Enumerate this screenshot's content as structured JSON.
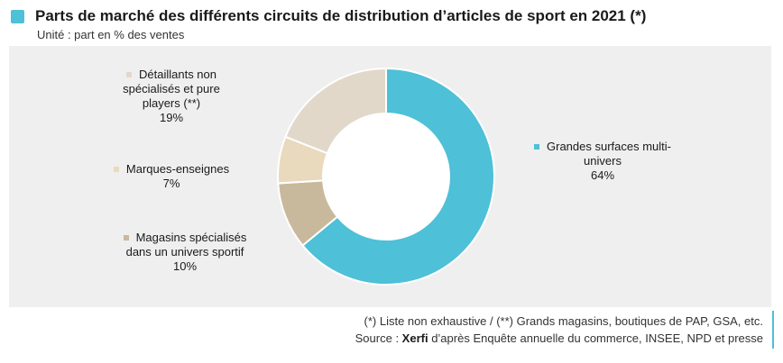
{
  "header": {
    "title": "Parts de marché des différents circuits de distribution d’articles de sport en 2021 (*)",
    "subtitle": "Unité : part en % des ventes",
    "accent_color": "#4ec0d8"
  },
  "chart_data": {
    "type": "pie",
    "variant": "donut",
    "title": "Parts de marché des différents circuits de distribution d’articles de sport en 2021 (*)",
    "unit": "Unité : part en % des ventes",
    "slices": [
      {
        "label": "Grandes surfaces multi-univers",
        "value": 64,
        "value_label": "64%",
        "color": "#4ec0d8"
      },
      {
        "label": "Magasins spécialisés dans un univers sportif",
        "value": 10,
        "value_label": "10%",
        "color": "#c9b99c"
      },
      {
        "label": "Marques-enseignes",
        "value": 7,
        "value_label": "7%",
        "color": "#e9d9bd"
      },
      {
        "label": "Détaillants non spécialisés et pure players (**)",
        "value": 19,
        "value_label": "19%",
        "color": "#e2d8c9"
      }
    ]
  },
  "labels": {
    "gsm": {
      "lines": [
        "Grandes surfaces multi-",
        "univers"
      ],
      "pct": "64%"
    },
    "mag": {
      "lines": [
        "Magasins spécialisés",
        "dans un univers sportif"
      ],
      "pct": "10%"
    },
    "marques": {
      "lines": [
        "Marques-enseignes"
      ],
      "pct": "7%"
    },
    "detail": {
      "lines": [
        "Détaillants non",
        "spécialisés et pure",
        "players (**)"
      ],
      "pct": "19%"
    }
  },
  "notes": {
    "line1": "(*) Liste non exhaustive / (**) Grands magasins, boutiques de PAP, GSA, etc.",
    "source_prefix": "Source : ",
    "source_brand": "Xerfi",
    "source_rest": " d’après Enquête annuelle du commerce, INSEE, NPD et presse"
  }
}
